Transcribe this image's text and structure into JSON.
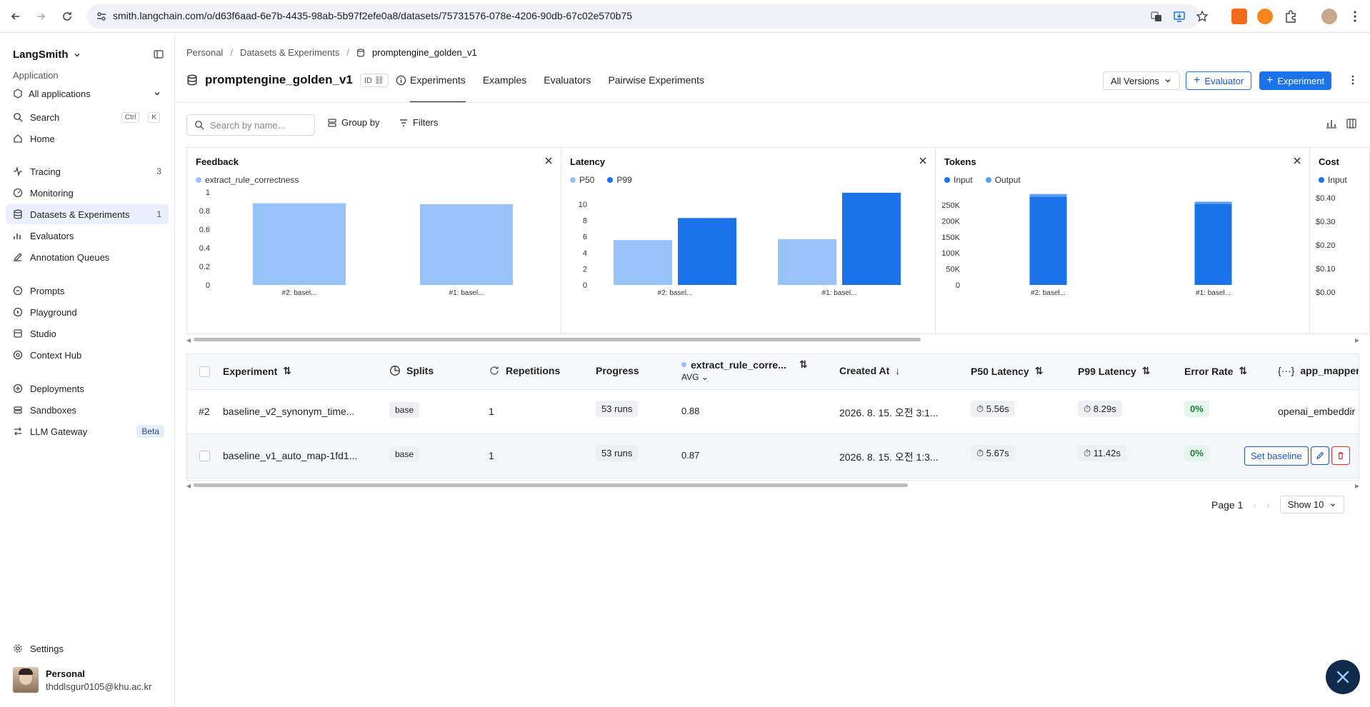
{
  "browser": {
    "url": "smith.langchain.com/o/d63f6aad-6e7b-4435-98ab-5b97f2efe0a8/datasets/75731576-078e-4206-90db-67c02e570b75"
  },
  "sidebar": {
    "brand": "LangSmith",
    "section_label": "Application",
    "app_selector": "All applications",
    "search": {
      "label": "Search",
      "kbd1": "Ctrl",
      "kbd2": "K"
    },
    "items": [
      {
        "label": "Home"
      },
      {
        "label": "Tracing",
        "count": "3"
      },
      {
        "label": "Monitoring"
      },
      {
        "label": "Datasets & Experiments",
        "count": "1"
      },
      {
        "label": "Evaluators"
      },
      {
        "label": "Annotation Queues"
      },
      {
        "label": "Prompts"
      },
      {
        "label": "Playground"
      },
      {
        "label": "Studio"
      },
      {
        "label": "Context Hub"
      },
      {
        "label": "Deployments"
      },
      {
        "label": "Sandboxes"
      },
      {
        "label": "LLM Gateway",
        "badge": "Beta"
      }
    ],
    "settings": "Settings",
    "user": {
      "name": "Personal",
      "email": "thddlsgur0105@khu.ac.kr"
    }
  },
  "breadcrumb": {
    "a": "Personal",
    "b": "Datasets & Experiments",
    "c": "promptengine_golden_v1"
  },
  "dataset": {
    "title": "promptengine_golden_v1",
    "id_badge": "ID"
  },
  "tabs": [
    "Experiments",
    "Examples",
    "Evaluators",
    "Pairwise Experiments"
  ],
  "header_buttons": {
    "versions": "All Versions",
    "evaluator": "Evaluator",
    "experiment": "Experiment"
  },
  "toolbar": {
    "search_placeholder": "Search by name...",
    "group_by": "Group by",
    "filters": "Filters"
  },
  "charts": {
    "feedback": {
      "title": "Feedback",
      "legend": [
        "extract_rule_correctness"
      ],
      "colors": [
        "#99c2fa"
      ],
      "categories": [
        "#2: basel...",
        "#1: basel..."
      ],
      "ticks": [
        "0",
        "0.2",
        "0.4",
        "0.6",
        "0.8",
        "1"
      ],
      "ymax": 1,
      "series": [
        [
          0.88,
          0.87
        ]
      ]
    },
    "latency": {
      "title": "Latency",
      "legend": [
        "P50",
        "P99"
      ],
      "colors": [
        "#99c2fa",
        "#1a73e8"
      ],
      "categories": [
        "#2: basel...",
        "#1: basel..."
      ],
      "ticks": [
        "0",
        "2",
        "4",
        "6",
        "8",
        "10"
      ],
      "ymax": 11.5,
      "series": [
        [
          5.56,
          5.67
        ],
        [
          8.29,
          11.42
        ]
      ]
    },
    "tokens": {
      "title": "Tokens",
      "legend": [
        "Input",
        "Output"
      ],
      "colors": [
        "#1a73e8",
        "#5aa0f2"
      ],
      "categories": [
        "#2: basel...",
        "#1: basel..."
      ],
      "ticks": [
        "0",
        "50K",
        "100K",
        "150K",
        "200K",
        "250K"
      ],
      "ymax": 290000,
      "stacked": [
        [
          276000,
          253000
        ],
        [
          8000,
          7000
        ]
      ]
    },
    "cost": {
      "title": "Cost",
      "legend": [
        "Input"
      ],
      "colors": [
        "#1a73e8"
      ],
      "ticks": [
        "$0.00",
        "$0.10",
        "$0.20",
        "$0.30",
        "$0.40"
      ]
    }
  },
  "table": {
    "headers": {
      "experiment": "Experiment",
      "splits": "Splits",
      "repetitions": "Repetitions",
      "progress": "Progress",
      "feedback": "extract_rule_corre...",
      "feedback_sub": "AVG",
      "created": "Created At",
      "p50": "P50 Latency",
      "p99": "P99 Latency",
      "error": "Error Rate",
      "mapper": "app_mapper"
    },
    "rows": [
      {
        "idx": "#2",
        "name": "baseline_v2_synonym_time...",
        "split": "base",
        "reps": "1",
        "progress": "53 runs",
        "score": "0.88",
        "created": "2026. 8. 15. 오전 3:1...",
        "p50": "5.56s",
        "p99": "8.29s",
        "error": "0%",
        "mapper": "openai_embeddir"
      },
      {
        "idx": "",
        "name": "baseline_v1_auto_map-1fd1...",
        "split": "base",
        "reps": "1",
        "progress": "53 runs",
        "score": "0.87",
        "created": "2026. 8. 15. 오전 1:3...",
        "p50": "5.67s",
        "p99": "11.42s",
        "error": "0%",
        "set_baseline": "Set baseline"
      }
    ]
  },
  "pager": {
    "page": "Page 1",
    "show": "Show 10"
  }
}
